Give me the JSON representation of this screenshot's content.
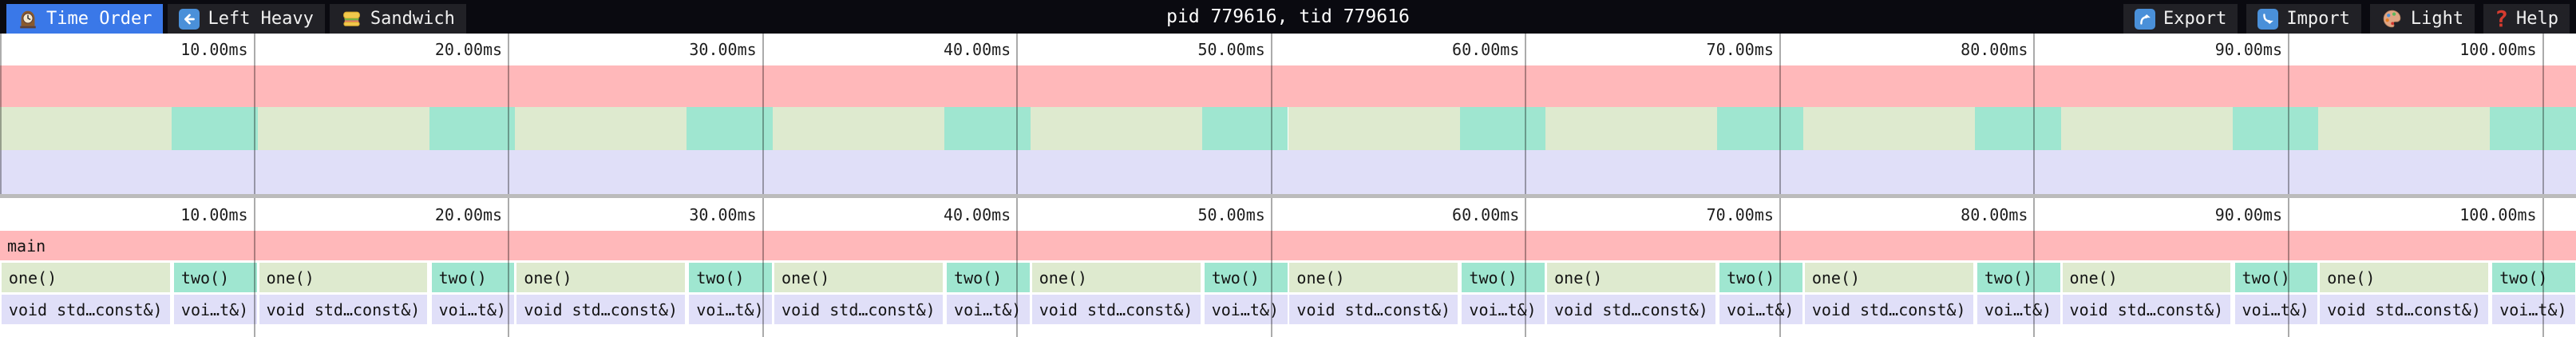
{
  "toolbar": {
    "tabs": [
      {
        "label": "Time Order",
        "icon": "clock-icon",
        "active": true
      },
      {
        "label": "Left Heavy",
        "icon": "left-arrow-icon",
        "active": false
      },
      {
        "label": "Sandwich",
        "icon": "sandwich-icon",
        "active": false
      }
    ],
    "title": "pid 779616, tid 779616",
    "buttons": [
      {
        "label": "Export",
        "icon": "export-icon"
      },
      {
        "label": "Import",
        "icon": "import-icon"
      },
      {
        "label": "Light",
        "icon": "palette-icon"
      },
      {
        "label": "Help",
        "icon": "help-icon",
        "icon_glyph": "?"
      }
    ]
  },
  "colors": {
    "toolbar_bg": "#0a0a10",
    "tab_bg": "#212126",
    "active_tab_bg": "#3a78e8",
    "icon_blue": "#4a90d9",
    "help_red": "#d63b2f",
    "frame_main": "#ffb8ba",
    "frame_one": "#deeacf",
    "frame_two": "#9fe6d0",
    "frame_child": "#e0dff8",
    "minimap_border": "#bbbbbb",
    "gridline": "rgba(0,0,0,0.33)"
  },
  "chart_data": {
    "type": "flamegraph",
    "unit": "ms",
    "total_duration_ms": 101.3,
    "axis_tick_interval_ms": 10,
    "axis_ticks": [
      "10.00ms",
      "20.00ms",
      "30.00ms",
      "40.00ms",
      "50.00ms",
      "60.00ms",
      "70.00ms",
      "80.00ms",
      "90.00ms",
      "100.00ms"
    ],
    "levels": [
      {
        "depth": 0,
        "frames": [
          {
            "label": "main",
            "start_ms": 0.0,
            "duration_ms": 101.3,
            "color": "#ffb8ba"
          }
        ]
      },
      {
        "depth": 1,
        "repeating_pattern": [
          {
            "label": "one()",
            "duration_ms": 6.75,
            "color": "#deeacf"
          },
          {
            "label": "two()",
            "duration_ms": 3.38,
            "color": "#9fe6d0"
          }
        ],
        "repetitions": 10
      },
      {
        "depth": 2,
        "repeating_pattern": [
          {
            "label": "void std…const&)",
            "duration_ms": 6.75,
            "color": "#e0dff8"
          },
          {
            "label": "voi…t&)",
            "duration_ms": 3.38,
            "color": "#e0dff8"
          }
        ],
        "repetitions": 10
      }
    ]
  }
}
